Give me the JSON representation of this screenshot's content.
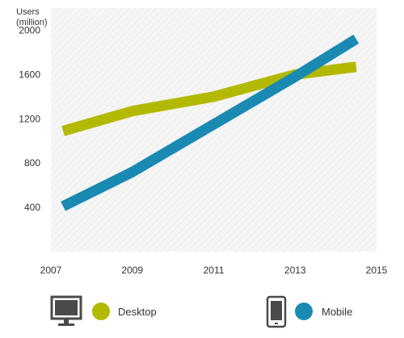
{
  "chart_data": {
    "type": "line",
    "ylabel_line1": "Users",
    "ylabel_line2": "(million)",
    "x_ticks": [
      2007,
      2009,
      2011,
      2013,
      2015
    ],
    "y_ticks": [
      400,
      800,
      1200,
      1600,
      2000
    ],
    "xlim": [
      2007,
      2015
    ],
    "ylim": [
      0,
      2200
    ],
    "grid": false,
    "legend_position": "bottom",
    "series": [
      {
        "name": "Desktop",
        "color": "#b2b900",
        "icon": "desktop-monitor-icon",
        "x": [
          2007.3,
          2009,
          2011,
          2013,
          2014.5
        ],
        "y": [
          1090,
          1270,
          1400,
          1600,
          1670
        ]
      },
      {
        "name": "Mobile",
        "color": "#1a8ab3",
        "icon": "mobile-phone-icon",
        "x": [
          2007.3,
          2009,
          2011,
          2013,
          2014.5
        ],
        "y": [
          410,
          720,
          1150,
          1580,
          1920
        ]
      }
    ]
  }
}
